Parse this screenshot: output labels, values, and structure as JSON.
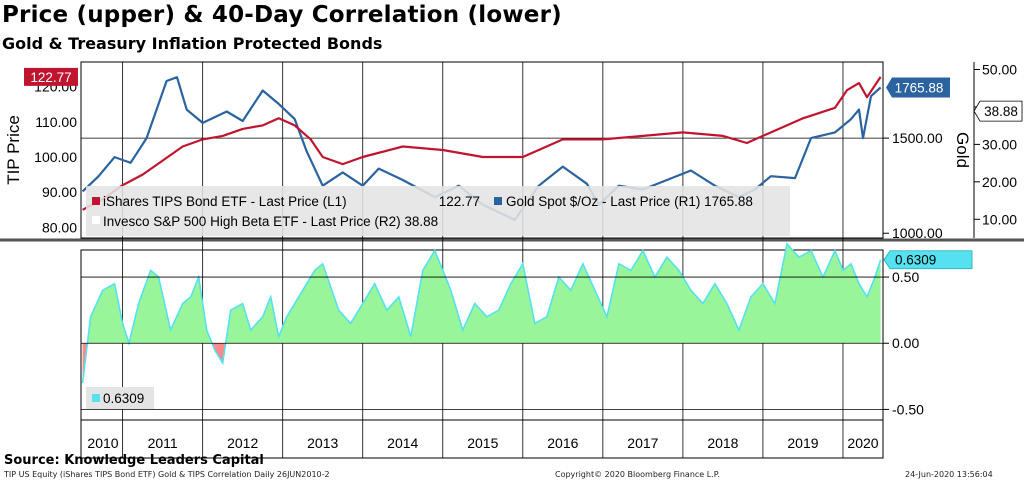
{
  "title": "Price (upper) & 40-Day Correlation (lower)",
  "subtitle": "Gold & Treasury Inflation Protected Bonds",
  "source": "Source: Knowledge Leaders Capital",
  "footer": {
    "left": "TIP US Equity (iShares TIPS Bond ETF) Gold & TIPS Correlation  Daily 26JUN2010-2",
    "center": "Copyright© 2020 Bloomberg Finance L.P.",
    "right": "24-Jun-2020 13:56:04"
  },
  "colors": {
    "tip": "#c0152f",
    "gold": "#2b63a0",
    "corr_fill": "#99f59a",
    "corr_line": "#55e1f0",
    "neg_fill": "#ff8a8a",
    "grid": "#000000"
  },
  "chart_data": [
    {
      "type": "line",
      "panel": "upper",
      "left_axis_label": "TIP Price",
      "right_axis_label": "Gold",
      "left_ticks": [
        "80.00",
        "90.00",
        "100.00",
        "110.00",
        "120.00"
      ],
      "left_ylim": [
        77,
        127
      ],
      "gold_ticks": [
        "1000.00",
        "1500.00"
      ],
      "gold_ylim": [
        975,
        1900
      ],
      "far_right_ticks": [
        "10.00",
        "20.00",
        "30.00",
        "40.00",
        "50.00"
      ],
      "far_right_ylim": [
        5,
        52
      ],
      "x_labels": [
        "2010",
        "2011",
        "2012",
        "2013",
        "2014",
        "2015",
        "2016",
        "2017",
        "2018",
        "2019",
        "2020"
      ],
      "x_range": [
        2010.48,
        2020.5
      ],
      "last_values": {
        "tip": "122.77",
        "gold": "1765.88",
        "high_beta": "38.88"
      },
      "legend": [
        {
          "label": "iShares TIPS Bond ETF - Last Price (L1)",
          "value": "122.77",
          "color": "#c0152f"
        },
        {
          "label": "Gold Spot $/Oz - Last Price (R1)",
          "value": "1765.88",
          "color": "#2b63a0"
        },
        {
          "label": "Invesco S&P 500 High Beta ETF - Last Price (R2)",
          "value": "38.88",
          "color": "#ffffff"
        }
      ],
      "series": [
        {
          "name": "iShares TIPS Bond ETF - Last Price (L1)",
          "axis": "left",
          "x": [
            2010.5,
            2010.75,
            2011.0,
            2011.25,
            2011.5,
            2011.75,
            2012.0,
            2012.25,
            2012.5,
            2012.75,
            2012.95,
            2013.15,
            2013.35,
            2013.5,
            2013.75,
            2014.0,
            2014.5,
            2015.0,
            2015.5,
            2016.0,
            2016.5,
            2017.0,
            2017.5,
            2018.0,
            2018.5,
            2018.8,
            2019.0,
            2019.5,
            2019.9,
            2020.05,
            2020.2,
            2020.3,
            2020.47
          ],
          "values": [
            85,
            88,
            92,
            95,
            99,
            103,
            105,
            106,
            108,
            109,
            111,
            109,
            105,
            100,
            98,
            100,
            103,
            102,
            100,
            100,
            105,
            105,
            106,
            107,
            106,
            104,
            106,
            111,
            114,
            119,
            121,
            117,
            122.77
          ]
        },
        {
          "name": "Gold Spot $/Oz - Last Price (R1)",
          "axis": "gold",
          "x": [
            2010.5,
            2010.7,
            2010.9,
            2011.1,
            2011.3,
            2011.55,
            2011.68,
            2011.8,
            2012.0,
            2012.3,
            2012.5,
            2012.75,
            2012.95,
            2013.15,
            2013.3,
            2013.5,
            2013.75,
            2014.0,
            2014.2,
            2014.5,
            2014.9,
            2015.2,
            2015.5,
            2015.9,
            2016.2,
            2016.5,
            2016.8,
            2016.95,
            2017.2,
            2017.5,
            2017.8,
            2018.1,
            2018.4,
            2018.7,
            2018.9,
            2019.1,
            2019.4,
            2019.6,
            2019.9,
            2020.1,
            2020.2,
            2020.25,
            2020.35,
            2020.47
          ],
          "values": [
            1220,
            1300,
            1400,
            1370,
            1500,
            1800,
            1820,
            1650,
            1580,
            1640,
            1590,
            1750,
            1680,
            1600,
            1430,
            1250,
            1320,
            1250,
            1340,
            1280,
            1190,
            1250,
            1150,
            1070,
            1250,
            1350,
            1260,
            1150,
            1250,
            1230,
            1280,
            1330,
            1250,
            1190,
            1230,
            1300,
            1290,
            1500,
            1530,
            1600,
            1650,
            1500,
            1720,
            1765.88
          ]
        }
      ]
    },
    {
      "type": "area",
      "panel": "lower",
      "name": "40-Day Correlation",
      "last_value": "0.6309",
      "legend": [
        {
          "label": "0.6309",
          "color": "#55e1f0"
        }
      ],
      "ticks": [
        "0.50",
        "0.00",
        "-0.50"
      ],
      "ylim": [
        -0.58,
        0.78
      ],
      "x": [
        2010.5,
        2010.6,
        2010.75,
        2010.9,
        2011.0,
        2011.08,
        2011.2,
        2011.35,
        2011.45,
        2011.6,
        2011.75,
        2011.85,
        2011.95,
        2012.05,
        2012.15,
        2012.25,
        2012.35,
        2012.5,
        2012.6,
        2012.75,
        2012.85,
        2012.95,
        2013.05,
        2013.2,
        2013.4,
        2013.5,
        2013.7,
        2013.85,
        2014.0,
        2014.15,
        2014.3,
        2014.45,
        2014.6,
        2014.75,
        2014.9,
        2015.0,
        2015.1,
        2015.25,
        2015.4,
        2015.55,
        2015.7,
        2015.85,
        2016.0,
        2016.15,
        2016.3,
        2016.45,
        2016.6,
        2016.75,
        2016.9,
        2017.05,
        2017.2,
        2017.35,
        2017.5,
        2017.65,
        2017.8,
        2017.95,
        2018.1,
        2018.25,
        2018.4,
        2018.55,
        2018.7,
        2018.85,
        2019.0,
        2019.15,
        2019.3,
        2019.45,
        2019.6,
        2019.75,
        2019.9,
        2020.0,
        2020.1,
        2020.2,
        2020.3,
        2020.4,
        2020.47
      ],
      "values": [
        -0.3,
        0.2,
        0.4,
        0.45,
        0.15,
        0.0,
        0.3,
        0.55,
        0.5,
        0.1,
        0.3,
        0.35,
        0.5,
        0.1,
        -0.05,
        -0.15,
        0.25,
        0.3,
        0.1,
        0.2,
        0.35,
        0.05,
        0.2,
        0.35,
        0.55,
        0.6,
        0.25,
        0.15,
        0.3,
        0.45,
        0.25,
        0.35,
        0.05,
        0.55,
        0.7,
        0.55,
        0.4,
        0.1,
        0.3,
        0.2,
        0.25,
        0.45,
        0.6,
        0.15,
        0.2,
        0.5,
        0.4,
        0.6,
        0.4,
        0.2,
        0.6,
        0.55,
        0.7,
        0.5,
        0.65,
        0.55,
        0.4,
        0.3,
        0.45,
        0.3,
        0.1,
        0.35,
        0.45,
        0.3,
        0.75,
        0.65,
        0.7,
        0.5,
        0.7,
        0.55,
        0.6,
        0.45,
        0.35,
        0.5,
        0.6309
      ]
    }
  ]
}
